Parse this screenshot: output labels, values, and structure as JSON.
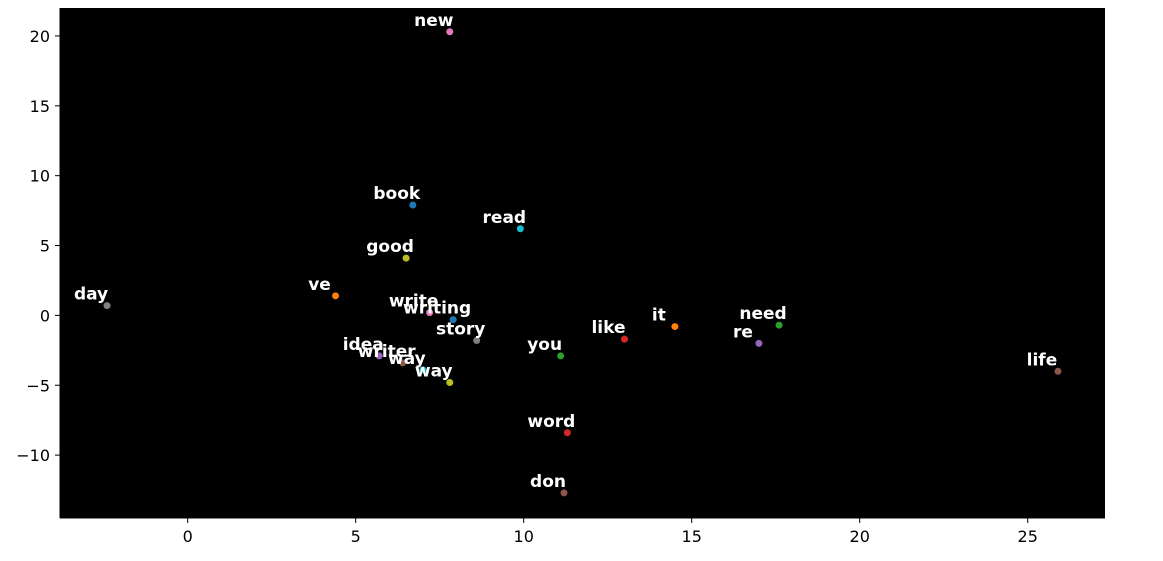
{
  "chart_data": {
    "type": "scatter",
    "title": "",
    "xlabel": "",
    "ylabel": "",
    "xlim": [
      -3.8,
      27.3
    ],
    "ylim": [
      -14.5,
      22.0
    ],
    "xticks": [
      0,
      5,
      10,
      15,
      20,
      25
    ],
    "yticks": [
      -10,
      -5,
      0,
      5,
      10,
      15,
      20
    ],
    "background": "#000000",
    "grid": false,
    "legend": "none",
    "points": [
      {
        "label": "new",
        "x": 7.8,
        "y": 20.3,
        "color": "#e377c2"
      },
      {
        "label": "book",
        "x": 6.7,
        "y": 7.9,
        "color": "#1f77b4"
      },
      {
        "label": "read",
        "x": 9.9,
        "y": 6.2,
        "color": "#17becf"
      },
      {
        "label": "good",
        "x": 6.5,
        "y": 4.1,
        "color": "#bcbd22"
      },
      {
        "label": "day",
        "x": -2.4,
        "y": 0.7,
        "color": "#7f7f7f"
      },
      {
        "label": "ve",
        "x": 4.4,
        "y": 1.4,
        "color": "#ff7f0e"
      },
      {
        "label": "write",
        "x": 7.2,
        "y": 0.2,
        "color": "#e377c2"
      },
      {
        "label": "writing",
        "x": 7.9,
        "y": -0.3,
        "color": "#1f77b4"
      },
      {
        "label": "story",
        "x": 8.6,
        "y": -1.8,
        "color": "#7f7f7f"
      },
      {
        "label": "idea",
        "x": 5.7,
        "y": -2.9,
        "color": "#9467bd"
      },
      {
        "label": "writer",
        "x": 6.4,
        "y": -3.4,
        "color": "#8c564b"
      },
      {
        "label": "way",
        "x": 7.0,
        "y": -3.9,
        "color": "#17becf"
      },
      {
        "label": "way",
        "x": 7.8,
        "y": -4.8,
        "color": "#bcbd22"
      },
      {
        "label": "you",
        "x": 11.1,
        "y": -2.9,
        "color": "#2ca02c"
      },
      {
        "label": "like",
        "x": 13.0,
        "y": -1.7,
        "color": "#d62728"
      },
      {
        "label": "it",
        "x": 14.5,
        "y": -0.8,
        "color": "#ff7f0e"
      },
      {
        "label": "need",
        "x": 17.6,
        "y": -0.7,
        "color": "#2ca02c"
      },
      {
        "label": "re",
        "x": 17.0,
        "y": -2.0,
        "color": "#9467bd"
      },
      {
        "label": "life",
        "x": 25.9,
        "y": -4.0,
        "color": "#8c564b"
      },
      {
        "label": "word",
        "x": 11.3,
        "y": -8.4,
        "color": "#d62728"
      },
      {
        "label": "don",
        "x": 11.2,
        "y": -12.7,
        "color": "#8c564b"
      }
    ]
  }
}
